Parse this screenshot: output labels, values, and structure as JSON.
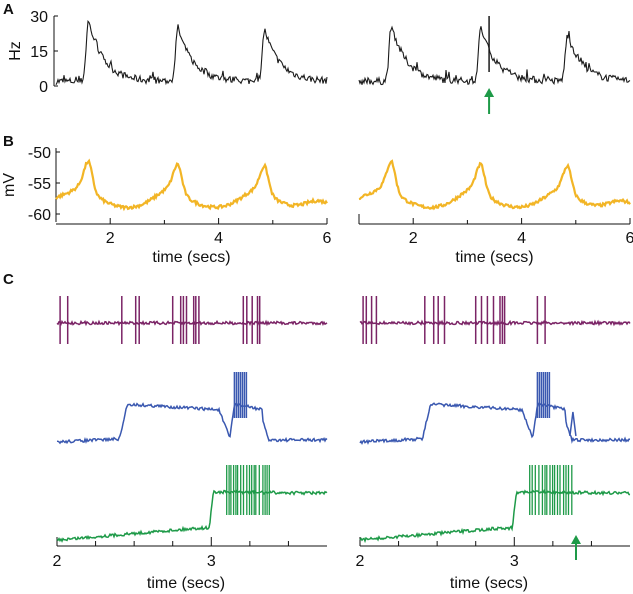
{
  "chart_data": {
    "type": "line",
    "panels": [
      {
        "id": "A",
        "label": "A",
        "ylabel": "Hz",
        "yticks": [
          "0",
          "15",
          "30"
        ],
        "ylim": [
          0,
          30
        ],
        "xlim": [
          1,
          6
        ],
        "color": "#1a1a1a",
        "series": [
          {
            "name": "left",
            "peaks_at_secs": [
              1.6,
              3.25,
              4.85
            ],
            "peak_hz": [
              30,
              27,
              26
            ],
            "baseline_hz": 2
          },
          {
            "name": "right",
            "peaks_at_secs": [
              1.6,
              3.25,
              4.85
            ],
            "peak_hz": [
              28,
              27,
              24
            ],
            "baseline_hz": 2,
            "spike_at_secs": 3.4,
            "spike_hz": 30
          }
        ],
        "arrow": {
          "x_secs": 3.4,
          "color": "#1e9a48"
        }
      },
      {
        "id": "B",
        "label": "B",
        "ylabel": "mV",
        "yticks": [
          "-60",
          "-55",
          "-50"
        ],
        "ylim": [
          -61,
          -49
        ],
        "xlabel": "time (secs)",
        "xticks": [
          "2",
          "4",
          "6"
        ],
        "xlim": [
          1,
          6
        ],
        "color": "#f2b526",
        "series": [
          {
            "name": "left",
            "peaks_at_secs": [
              1.6,
              3.25,
              4.85
            ],
            "peak_mv": [
              -51.5,
              -52,
              -52.3
            ],
            "trough_mv": -59.7
          },
          {
            "name": "right",
            "peaks_at_secs": [
              1.6,
              3.25,
              4.85
            ],
            "peak_mv": [
              -51.5,
              -52,
              -52.3
            ],
            "trough_mv": -59.7
          }
        ]
      },
      {
        "id": "C",
        "label": "C",
        "xlabel": "time (secs)",
        "xticks": [
          "2",
          "3"
        ],
        "xlim": [
          2,
          3.75
        ],
        "traces": [
          {
            "name": "top",
            "color": "#7b2466",
            "bursts_secs": [
              [
                2.02,
                2.12
              ],
              [
                2.42,
                2.55
              ],
              [
                2.75,
                2.95
              ],
              [
                3.15,
                3.32
              ]
            ]
          },
          {
            "name": "middle",
            "color": "#3a58b0",
            "up_state_secs": [
              2.45,
              3.12
            ],
            "burst_secs": [
              3.15,
              3.23
            ],
            "dip_at_secs": 3.12
          },
          {
            "name": "bottom",
            "color": "#1e9a48",
            "step_at_secs": 3.0,
            "burst_secs": [
              3.1,
              3.38
            ]
          }
        ],
        "arrow": {
          "x_secs": 3.4,
          "color": "#1e9a48"
        }
      }
    ]
  }
}
